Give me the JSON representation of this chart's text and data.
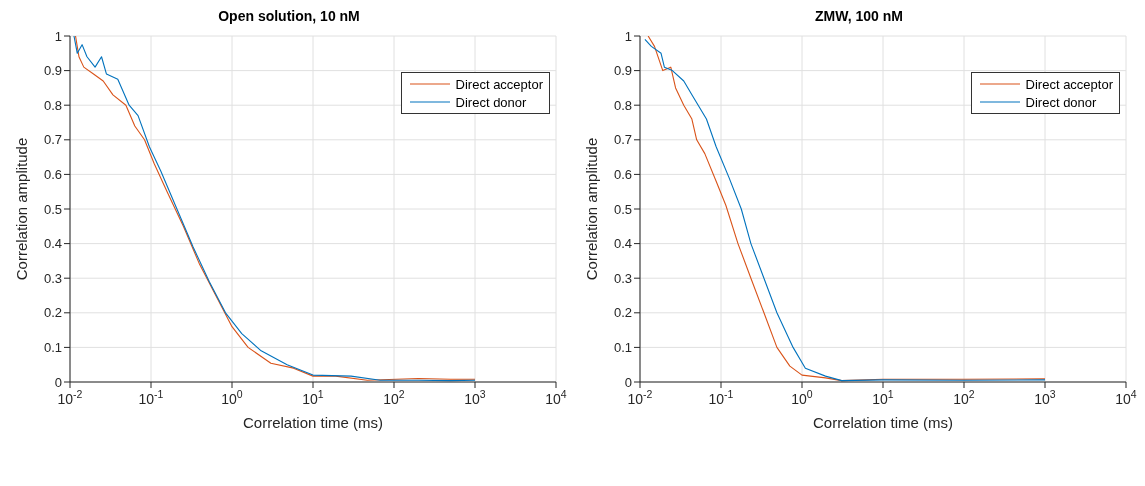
{
  "chart_data": [
    {
      "type": "line",
      "title": "Open solution, 10 nM",
      "xlabel": "Correlation time (ms)",
      "ylabel": "Correlation amplitude",
      "log": "x",
      "grid": true,
      "legend": "top right",
      "xlim": [
        0.01,
        10000
      ],
      "ylim": [
        0,
        1
      ],
      "xticks": [
        {
          "value": 0.01,
          "label": "10$^{-2}$"
        },
        {
          "value": 0.1,
          "label": "10$^{-1}$"
        },
        {
          "value": 1,
          "label": "10$^{0}$"
        },
        {
          "value": 10,
          "label": "10$^{1}$"
        },
        {
          "value": 100,
          "label": "10$^{2}$"
        },
        {
          "value": 1000,
          "label": "10$^{3}$"
        },
        {
          "value": 10000,
          "label": "10$^{4}$"
        }
      ],
      "yticks": [
        0,
        0.1,
        0.2,
        0.3,
        0.4,
        0.5,
        0.6,
        0.7,
        0.8,
        0.9,
        1
      ],
      "series": [
        {
          "name": "Direct acceptor",
          "color": "#d95319",
          "x": [
            0.0117,
            0.0129,
            0.0148,
            0.0195,
            0.0257,
            0.0339,
            0.049,
            0.0631,
            0.0832,
            0.11,
            0.158,
            0.251,
            0.398,
            0.631,
            1,
            1.58,
            3.02,
            5.75,
            10,
            19.1,
            46.8,
            200,
            500,
            1000
          ],
          "values": [
            1,
            0.94,
            0.91,
            0.89,
            0.87,
            0.83,
            0.8,
            0.74,
            0.7,
            0.63,
            0.55,
            0.45,
            0.34,
            0.25,
            0.16,
            0.1,
            0.054,
            0.04,
            0.017,
            0.017,
            0.005,
            0.01,
            0.008,
            0.008
          ]
        },
        {
          "name": "Direct donor",
          "color": "#0072bd",
          "x": [
            0.0112,
            0.0123,
            0.0141,
            0.0162,
            0.0204,
            0.0245,
            0.0282,
            0.0389,
            0.0537,
            0.0692,
            0.0955,
            0.132,
            0.209,
            0.331,
            0.525,
            0.832,
            1.32,
            2.29,
            4.79,
            10,
            29.5,
            67.6,
            200,
            500,
            1000
          ],
          "values": [
            1,
            0.95,
            0.975,
            0.94,
            0.91,
            0.94,
            0.89,
            0.875,
            0.8,
            0.77,
            0.68,
            0.61,
            0.5,
            0.39,
            0.29,
            0.2,
            0.14,
            0.09,
            0.05,
            0.02,
            0.017,
            0.005,
            0.005,
            0.004,
            0.005
          ]
        }
      ]
    },
    {
      "type": "line",
      "title": "ZMW, 100 nM",
      "xlabel": "Correlation time (ms)",
      "ylabel": "Correlation amplitude",
      "log": "x",
      "grid": true,
      "legend": "top right",
      "xlim": [
        0.01,
        10000
      ],
      "ylim": [
        0,
        1
      ],
      "xticks": [
        {
          "value": 0.01,
          "label": "10$^{-2}$"
        },
        {
          "value": 0.1,
          "label": "10$^{-1}$"
        },
        {
          "value": 1,
          "label": "10$^{0}$"
        },
        {
          "value": 10,
          "label": "10$^{1}$"
        },
        {
          "value": 100,
          "label": "10$^{2}$"
        },
        {
          "value": 1000,
          "label": "10$^{3}$"
        },
        {
          "value": 10000,
          "label": "10$^{4}$"
        }
      ],
      "yticks": [
        0,
        0.1,
        0.2,
        0.3,
        0.4,
        0.5,
        0.6,
        0.7,
        0.8,
        0.9,
        1
      ],
      "series": [
        {
          "name": "Direct acceptor",
          "color": "#d95319",
          "x": [
            0.0126,
            0.0151,
            0.0191,
            0.024,
            0.0275,
            0.0347,
            0.0437,
            0.0501,
            0.0631,
            0.0871,
            0.115,
            0.162,
            0.234,
            0.339,
            0.49,
            0.708,
            1,
            1.95,
            3.09,
            10,
            100,
            1000
          ],
          "values": [
            1,
            0.97,
            0.9,
            0.91,
            0.85,
            0.8,
            0.76,
            0.7,
            0.66,
            0.58,
            0.51,
            0.4,
            0.3,
            0.2,
            0.1,
            0.046,
            0.02,
            0.012,
            0.004,
            0.008,
            0.008,
            0.009
          ]
        },
        {
          "name": "Direct donor",
          "color": "#0072bd",
          "x": [
            0.0115,
            0.0138,
            0.0182,
            0.02,
            0.0251,
            0.0347,
            0.0437,
            0.0661,
            0.0871,
            0.126,
            0.178,
            0.234,
            0.339,
            0.49,
            0.776,
            1.1,
            1.95,
            3.09,
            10,
            100,
            1000
          ],
          "values": [
            0.99,
            0.97,
            0.95,
            0.91,
            0.9,
            0.87,
            0.83,
            0.76,
            0.68,
            0.59,
            0.5,
            0.4,
            0.3,
            0.2,
            0.1,
            0.04,
            0.017,
            0.004,
            0.006,
            0.005,
            0.006
          ]
        }
      ]
    }
  ]
}
